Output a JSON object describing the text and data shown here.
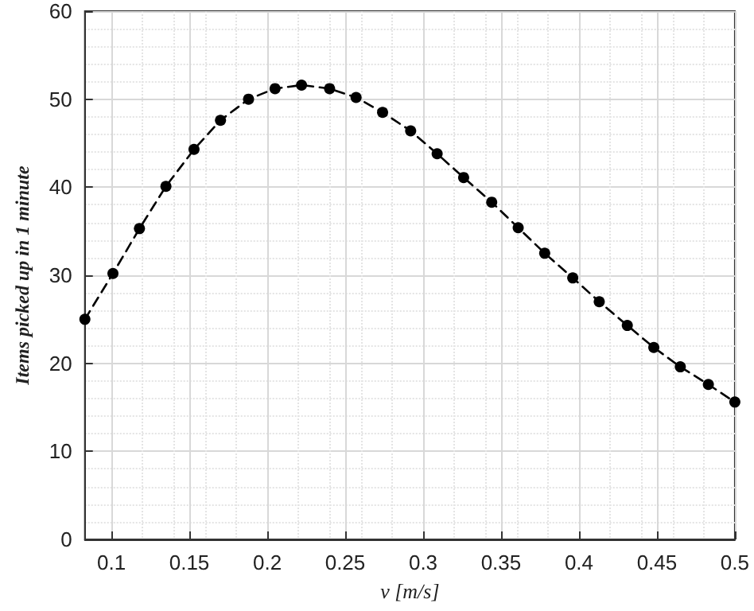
{
  "chart_data": {
    "type": "line",
    "xlabel": "v [m/s]",
    "ylabel": "Items picked up in 1 minute",
    "x": [
      0.083,
      0.101,
      0.118,
      0.135,
      0.153,
      0.17,
      0.188,
      0.205,
      0.222,
      0.24,
      0.257,
      0.274,
      0.292,
      0.309,
      0.326,
      0.344,
      0.361,
      0.378,
      0.396,
      0.413,
      0.431,
      0.448,
      0.465,
      0.483,
      0.5
    ],
    "series": [
      {
        "color": "#000000",
        "values": [
          25,
          30.2,
          35.3,
          40.1,
          44.3,
          47.6,
          50.0,
          51.2,
          51.6,
          51.2,
          50.2,
          48.5,
          46.4,
          43.8,
          41.1,
          38.3,
          35.4,
          32.5,
          29.7,
          27.0,
          24.3,
          21.8,
          19.6,
          17.6,
          15.6
        ]
      }
    ],
    "xlim": [
      0.083,
      0.5
    ],
    "xticks": [
      0.1,
      0.15,
      0.2,
      0.25,
      0.3,
      0.35,
      0.4,
      0.45,
      0.5
    ],
    "ylim": [
      0,
      60
    ],
    "yticks": [
      0,
      10,
      20,
      30,
      40,
      50,
      60
    ],
    "grid": true,
    "marker": "circle",
    "line_style": "dashed"
  }
}
